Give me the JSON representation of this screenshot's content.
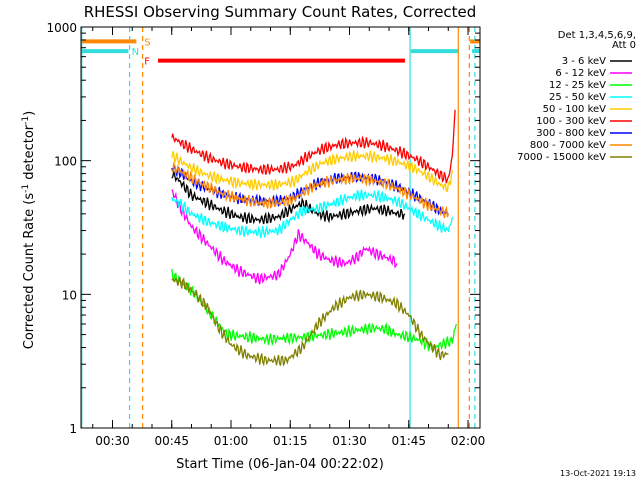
{
  "chart_data": {
    "type": "line",
    "title": "RHESSI Observing Summary Count Rates, Corrected",
    "xlabel": "Start Time (06-Jan-04 00:22:02)",
    "ylabel_main": "Corrected Count Rate (s",
    "ylabel_sup1": "-1",
    "ylabel_mid": " detector",
    "ylabel_sup2": "-1",
    "ylabel_end": ")",
    "y_scale": "log",
    "ylim": [
      1,
      1000
    ],
    "xlim_minutes_after_0022": [
      0,
      101
    ],
    "x_ticks": [
      {
        "label": "00:30",
        "minutes": 7.97
      },
      {
        "label": "00:45",
        "minutes": 22.97
      },
      {
        "label": "01:00",
        "minutes": 37.97
      },
      {
        "label": "01:15",
        "minutes": 52.97
      },
      {
        "label": "01:30",
        "minutes": 67.97
      },
      {
        "label": "01:45",
        "minutes": 82.97
      },
      {
        "label": "02:00",
        "minutes": 97.97
      }
    ],
    "y_ticks": [
      {
        "label": "1",
        "value": 1
      },
      {
        "label": "10",
        "value": 10
      },
      {
        "label": "100",
        "value": 100
      },
      {
        "label": "1000",
        "value": 1000
      }
    ],
    "legend_header": [
      "Det 1,3,4,5,6,9,",
      "Att 0"
    ],
    "legend_position": "right",
    "series": [
      {
        "name": "3 - 6 keV",
        "color": "#000000",
        "points": [
          [
            23,
            80
          ],
          [
            25,
            70
          ],
          [
            28,
            55
          ],
          [
            32,
            48
          ],
          [
            36,
            42
          ],
          [
            40,
            38
          ],
          [
            45,
            36
          ],
          [
            50,
            38
          ],
          [
            54,
            45
          ],
          [
            56,
            48
          ],
          [
            60,
            40
          ],
          [
            63,
            38
          ],
          [
            67,
            40
          ],
          [
            70,
            42
          ],
          [
            74,
            44
          ],
          [
            78,
            42
          ],
          [
            80,
            40
          ],
          [
            82,
            40
          ]
        ]
      },
      {
        "name": "6 - 12 keV",
        "color": "#ff00ff",
        "points": [
          [
            23,
            60
          ],
          [
            25,
            45
          ],
          [
            28,
            32
          ],
          [
            32,
            24
          ],
          [
            36,
            18
          ],
          [
            40,
            15
          ],
          [
            45,
            13
          ],
          [
            50,
            14
          ],
          [
            53,
            20
          ],
          [
            55,
            28
          ],
          [
            57,
            25
          ],
          [
            60,
            20
          ],
          [
            63,
            18
          ],
          [
            67,
            17
          ],
          [
            70,
            19
          ],
          [
            72,
            22
          ],
          [
            75,
            20
          ],
          [
            79,
            18
          ],
          [
            80,
            17
          ]
        ]
      },
      {
        "name": "12 - 25 keV",
        "color": "#00ff00",
        "points": [
          [
            23,
            14
          ],
          [
            26,
            12
          ],
          [
            29,
            10
          ],
          [
            33,
            7
          ],
          [
            37,
            5
          ],
          [
            42,
            4.8
          ],
          [
            47,
            4.6
          ],
          [
            52,
            4.7
          ],
          [
            57,
            4.8
          ],
          [
            62,
            5
          ],
          [
            66,
            5.2
          ],
          [
            70,
            5.4
          ],
          [
            74,
            5.6
          ],
          [
            77,
            5.5
          ],
          [
            80,
            5
          ],
          [
            83,
            4.8
          ],
          [
            86,
            4.5
          ],
          [
            89,
            4
          ],
          [
            92,
            4.3
          ],
          [
            94,
            4.5
          ],
          [
            95,
            6
          ]
        ]
      },
      {
        "name": "25 - 50 keV",
        "color": "#00ffff",
        "points": [
          [
            23,
            52
          ],
          [
            25,
            48
          ],
          [
            28,
            40
          ],
          [
            32,
            35
          ],
          [
            36,
            32
          ],
          [
            40,
            30
          ],
          [
            45,
            29
          ],
          [
            50,
            30
          ],
          [
            53,
            36
          ],
          [
            56,
            42
          ],
          [
            60,
            44
          ],
          [
            64,
            48
          ],
          [
            67,
            52
          ],
          [
            70,
            55
          ],
          [
            74,
            55
          ],
          [
            78,
            52
          ],
          [
            81,
            48
          ],
          [
            84,
            42
          ],
          [
            88,
            36
          ],
          [
            91,
            32
          ],
          [
            93,
            30
          ],
          [
            94,
            38
          ]
        ]
      },
      {
        "name": "50 - 100 keV",
        "color": "#ffcc00",
        "points": [
          [
            23,
            110
          ],
          [
            25,
            100
          ],
          [
            28,
            88
          ],
          [
            32,
            78
          ],
          [
            36,
            72
          ],
          [
            40,
            68
          ],
          [
            45,
            66
          ],
          [
            50,
            66
          ],
          [
            54,
            70
          ],
          [
            57,
            82
          ],
          [
            61,
            96
          ],
          [
            65,
            104
          ],
          [
            69,
            108
          ],
          [
            73,
            108
          ],
          [
            77,
            104
          ],
          [
            81,
            96
          ],
          [
            85,
            86
          ],
          [
            88,
            76
          ],
          [
            91,
            66
          ],
          [
            93,
            62
          ],
          [
            94,
            85
          ]
        ]
      },
      {
        "name": "100 - 300 keV",
        "color": "#ff0000",
        "points": [
          [
            23,
            150
          ],
          [
            25,
            138
          ],
          [
            28,
            122
          ],
          [
            32,
            106
          ],
          [
            36,
            96
          ],
          [
            40,
            90
          ],
          [
            45,
            86
          ],
          [
            50,
            86
          ],
          [
            54,
            92
          ],
          [
            57,
            106
          ],
          [
            61,
            122
          ],
          [
            65,
            132
          ],
          [
            69,
            136
          ],
          [
            73,
            136
          ],
          [
            77,
            128
          ],
          [
            81,
            116
          ],
          [
            85,
            102
          ],
          [
            88,
            90
          ],
          [
            91,
            78
          ],
          [
            93,
            72
          ],
          [
            94,
            110
          ],
          [
            94.7,
            240
          ]
        ]
      },
      {
        "name": "300 - 800 keV",
        "color": "#0000ff",
        "points": [
          [
            23,
            88
          ],
          [
            25,
            82
          ],
          [
            28,
            70
          ],
          [
            32,
            62
          ],
          [
            36,
            56
          ],
          [
            40,
            52
          ],
          [
            45,
            50
          ],
          [
            50,
            50
          ],
          [
            54,
            54
          ],
          [
            57,
            62
          ],
          [
            61,
            70
          ],
          [
            65,
            74
          ],
          [
            69,
            76
          ],
          [
            73,
            74
          ],
          [
            77,
            70
          ],
          [
            81,
            62
          ],
          [
            85,
            54
          ],
          [
            88,
            48
          ],
          [
            91,
            42
          ],
          [
            93,
            40
          ]
        ]
      },
      {
        "name": "800 - 7000 keV",
        "color": "#ff8800",
        "points": [
          [
            23,
            90
          ],
          [
            25,
            84
          ],
          [
            28,
            74
          ],
          [
            32,
            64
          ],
          [
            36,
            56
          ],
          [
            40,
            52
          ],
          [
            45,
            48
          ],
          [
            50,
            48
          ],
          [
            54,
            52
          ],
          [
            57,
            60
          ],
          [
            61,
            68
          ],
          [
            65,
            72
          ],
          [
            69,
            74
          ],
          [
            73,
            72
          ],
          [
            77,
            68
          ],
          [
            81,
            60
          ],
          [
            85,
            52
          ],
          [
            88,
            46
          ],
          [
            91,
            42
          ],
          [
            93,
            40
          ]
        ]
      },
      {
        "name": "7000 - 15000 keV",
        "color": "#808000",
        "points": [
          [
            23,
            13
          ],
          [
            26,
            12
          ],
          [
            29,
            10
          ],
          [
            32,
            8
          ],
          [
            35,
            5.5
          ],
          [
            38,
            4.2
          ],
          [
            42,
            3.5
          ],
          [
            47,
            3.2
          ],
          [
            52,
            3.2
          ],
          [
            56,
            4
          ],
          [
            60,
            6
          ],
          [
            64,
            8
          ],
          [
            68,
            9.5
          ],
          [
            72,
            10
          ],
          [
            76,
            9.5
          ],
          [
            80,
            8.5
          ],
          [
            83,
            7
          ],
          [
            86,
            5
          ],
          [
            89,
            4
          ],
          [
            91,
            3.5
          ],
          [
            93,
            3.6
          ]
        ]
      }
    ],
    "state_bars": [
      {
        "label": "S",
        "color": "#ff8800",
        "level": 780
      },
      {
        "label": "N",
        "color": "#33dddd",
        "level": 660
      },
      {
        "label": "F",
        "color": "#ff0000",
        "level": 560
      }
    ],
    "footer_date": "13-Oct-2021 19:13"
  }
}
